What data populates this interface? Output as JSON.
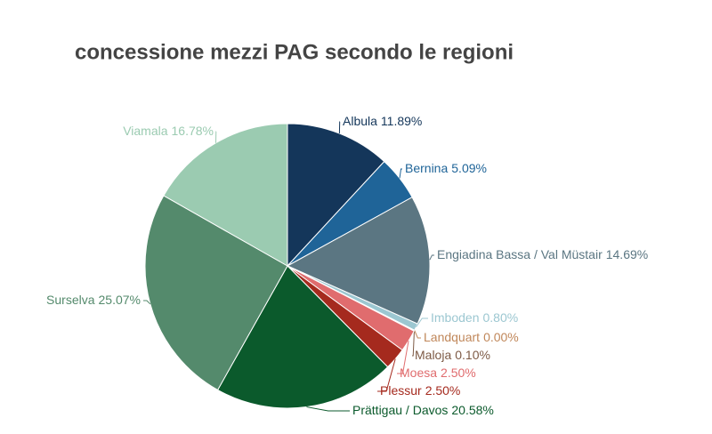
{
  "chart_data": {
    "type": "pie",
    "title": "concessione mezzi PAG secondo le regioni",
    "categories": [
      "Albula",
      "Bernina",
      "Engiadina Bassa / Val Müstair",
      "Imboden",
      "Landquart",
      "Maloja",
      "Moesa",
      "Plessur",
      "Prättigau / Davos",
      "Surselva",
      "Viamala"
    ],
    "values": [
      11.89,
      5.09,
      14.69,
      0.8,
      0.0,
      0.1,
      2.5,
      2.5,
      20.58,
      25.07,
      16.78
    ],
    "value_labels": [
      "11.89%",
      "5.09%",
      "14.69%",
      "0.80%",
      "0.00%",
      "0.10%",
      "2.50%",
      "2.50%",
      "20.58%",
      "25.07%",
      "16.78%"
    ],
    "colors": [
      "#14365a",
      "#1f6498",
      "#5b7682",
      "#9cc7d1",
      "#c0875a",
      "#7d5a45",
      "#e06c6e",
      "#a52a1e",
      "#0b5a2c",
      "#548a6c",
      "#9bcbb1"
    ]
  }
}
